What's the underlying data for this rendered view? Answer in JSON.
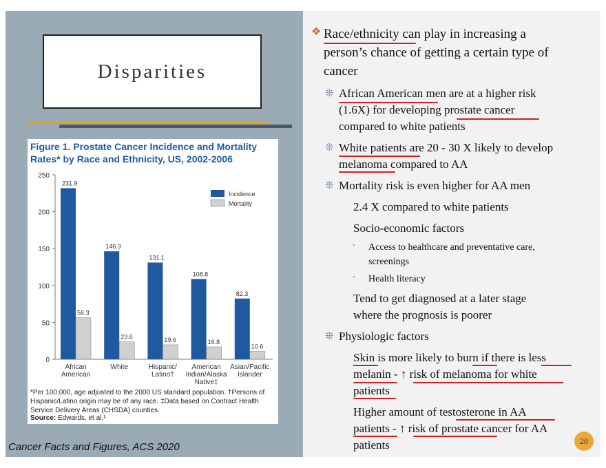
{
  "slide": {
    "title": "Disparities",
    "citation": "Cancer Facts and Figures, ACS 2020",
    "page_number": "20"
  },
  "figure": {
    "title": "Figure 1. Prostate Cancer Incidence and Mortality Rates* by Race and Ethnicity, US, 2002-2006",
    "footnote": "*Per 100,000, age adjusted to the 2000 US standard population. †Persons of Hispanic/Latino origin may be of any race. ‡Data based on Contract Health Service Delivery Areas (CHSDA) counties.",
    "source_label": "Source:",
    "source_text": "Edwards, et al.¹"
  },
  "chart_data": {
    "type": "bar",
    "categories": [
      [
        "African",
        "American"
      ],
      [
        "White"
      ],
      [
        "Hispanic/",
        "Latino†"
      ],
      [
        "American",
        "Indian/Alaska",
        "Native‡"
      ],
      [
        "Asian/Pacific",
        "Islander"
      ]
    ],
    "series": [
      {
        "name": "Incidence",
        "values": [
          231.9,
          146.3,
          131.1,
          108.8,
          82.3
        ],
        "labels": [
          "231.9",
          "146.3",
          "131.1",
          "108.8",
          "82.3"
        ],
        "color": "#1f5aa0"
      },
      {
        "name": "Mortality",
        "values": [
          56.3,
          23.6,
          19.6,
          16.8,
          10.6
        ],
        "labels": [
          "56.3",
          "23.6",
          "19.6",
          "16.8",
          "10.6"
        ],
        "color": "#d0d0d0"
      }
    ],
    "yticks": [
      "0",
      "50",
      "100",
      "150",
      "200",
      "250"
    ],
    "ylim": [
      0,
      250
    ],
    "legend": "top-right"
  },
  "bullets": {
    "b1": {
      "line1": "Race/ethnicity can play in increasing a",
      "line2": "person’s chance of getting a certain type of",
      "line3": "cancer"
    },
    "b2": {
      "line1": "African American men are at a higher risk",
      "line2": "(1.6X) for developing prostate cancer",
      "line3": "compared to white patients"
    },
    "b3": {
      "line1": "White patients are 20 - 30 X likely to develop",
      "line2": "melanoma compared to AA"
    },
    "b4": "Mortality risk is even higher for AA men",
    "b5": "2.4 X compared to white patients",
    "b6": "Socio-economic factors",
    "b7": {
      "line1": "Access to healthcare and preventative care,",
      "line2": "screenings"
    },
    "b8": "Health literacy",
    "b9": {
      "line1": "Tend to get diagnosed at a later stage",
      "line2": "where the prognosis is poorer"
    },
    "b10": "Physiologic factors",
    "b11": {
      "line1": "Skin is more likely to burn if there is less",
      "line2": "melanin - ↑ risk of melanoma for white",
      "line3": "patients"
    },
    "b12": {
      "line1": "Higher amount of testosterone in AA",
      "line2": "patients - ↑ risk of prostate cancer for AA",
      "line3": "patients"
    }
  },
  "icons": {
    "level1": "four-diamond-bullet-icon",
    "level2": "asterisk-flower-bullet-icon",
    "level4": "dot-bullet-icon"
  },
  "colors": {
    "accent_orange": "#e1a22b",
    "underline_red": "#d02020",
    "bar_blue": "#1f5aa0"
  }
}
